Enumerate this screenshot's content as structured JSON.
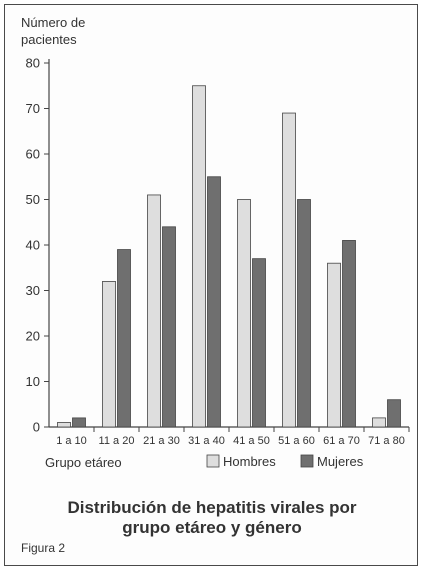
{
  "chart_data": {
    "type": "bar",
    "title_lines": [
      "Distribución de hepatitis virales por",
      "grupo etáreo y género"
    ],
    "ylabel_lines": [
      "Número de",
      "pacientes"
    ],
    "xlabel": "Grupo etáreo",
    "figure_label": "Figura 2",
    "categories": [
      "1 a 10",
      "11 a 20",
      "21 a 30",
      "31 a 40",
      "41 a 50",
      "51 a 60",
      "61 a 70",
      "71 a 80"
    ],
    "series": [
      {
        "name": "Hombres",
        "color": "#dedede",
        "values": [
          1,
          32,
          51,
          75,
          50,
          69,
          36,
          2
        ]
      },
      {
        "name": "Mujeres",
        "color": "#6f6f6f",
        "values": [
          2,
          39,
          44,
          55,
          37,
          50,
          41,
          6
        ]
      }
    ],
    "ylim": [
      0,
      80
    ],
    "yticks": [
      0,
      10,
      20,
      30,
      40,
      50,
      60,
      70,
      80
    ],
    "grid": false,
    "legend_position": "bottom"
  }
}
